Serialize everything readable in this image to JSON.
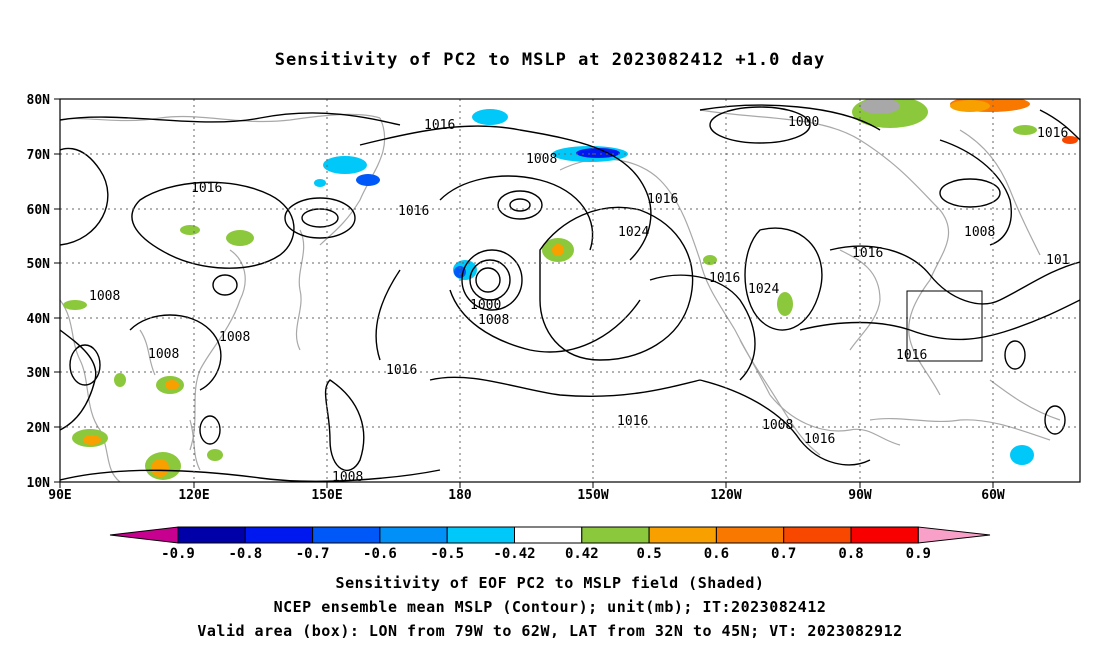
{
  "title": "Sensitivity of PC2 to MSLP at 2023082412 +1.0 day",
  "map": {
    "lat_labels": [
      "80N",
      "70N",
      "60N",
      "50N",
      "40N",
      "30N",
      "20N",
      "10N"
    ],
    "lon_labels": [
      "90E",
      "120E",
      "150E",
      "180",
      "150W",
      "120W",
      "90W",
      "60W"
    ],
    "contour_labels": [
      {
        "text": "1016"
      },
      {
        "text": "1000"
      },
      {
        "text": "1016"
      },
      {
        "text": "1016"
      },
      {
        "text": "1016"
      },
      {
        "text": "1008"
      },
      {
        "text": "1016"
      },
      {
        "text": "1024"
      },
      {
        "text": "1016"
      },
      {
        "text": "1024"
      },
      {
        "text": "1016"
      },
      {
        "text": "1008"
      },
      {
        "text": "101"
      },
      {
        "text": "1008"
      },
      {
        "text": "1008"
      },
      {
        "text": "1008"
      },
      {
        "text": "1000"
      },
      {
        "text": "1008"
      },
      {
        "text": "1016"
      },
      {
        "text": "1016"
      },
      {
        "text": "1016"
      },
      {
        "text": "1008"
      },
      {
        "text": "1016"
      },
      {
        "text": "1008"
      }
    ],
    "valid_box": {
      "lon_min_w": 79,
      "lon_max_w": 62,
      "lat_min": 32,
      "lat_max": 45
    }
  },
  "colorbar": {
    "labels": [
      "-0.9",
      "-0.8",
      "-0.7",
      "-0.6",
      "-0.5",
      "-0.42",
      "0.42",
      "0.5",
      "0.6",
      "0.7",
      "0.8",
      "0.9"
    ],
    "colors": [
      "#0000a8",
      "#0018f0",
      "#0058f8",
      "#0090f8",
      "#00c8f8",
      "#ffffff",
      "#8cc83c",
      "#f8a000",
      "#f87800",
      "#f84800",
      "#f80000"
    ],
    "low_end_color": "#c80090",
    "high_end_color": "#f8a0c8"
  },
  "captions": {
    "line1": "Sensitivity of EOF PC2 to MSLP field (Shaded)",
    "line2": "NCEP ensemble mean MSLP (Contour); unit(mb); IT:2023082412",
    "line3": "Valid area (box): LON from 79W to 62W, LAT from 32N to 45N; VT: 2023082912"
  }
}
